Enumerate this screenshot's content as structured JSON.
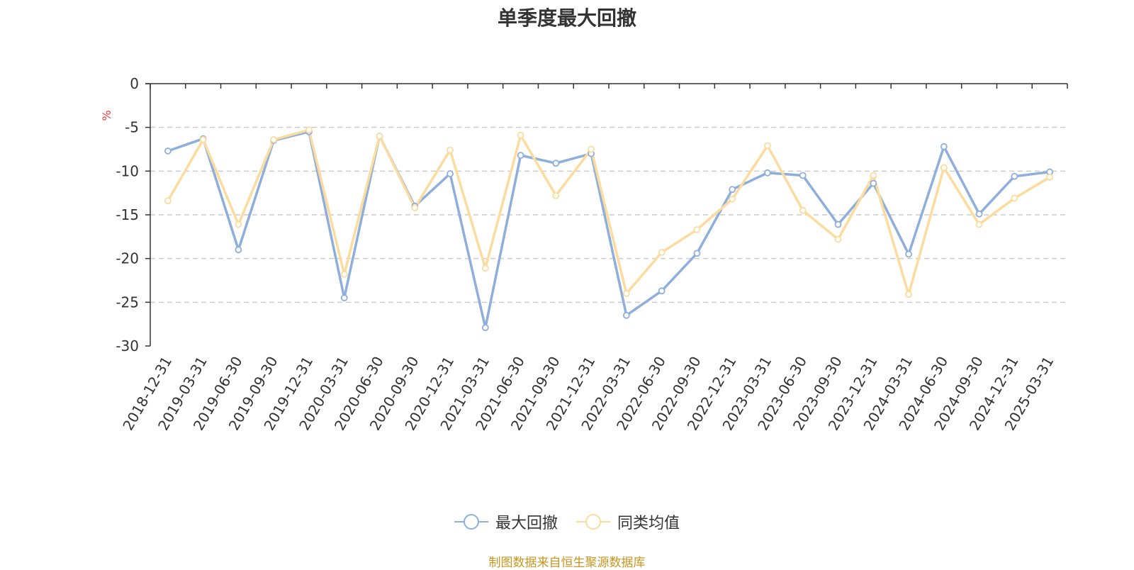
{
  "chart_data": {
    "type": "line",
    "title": "单季度最大回撤",
    "ylabel": "%",
    "xlabel": "",
    "ylim": [
      -30,
      0
    ],
    "yticks": [
      0,
      -5,
      -10,
      -15,
      -20,
      -25,
      -30
    ],
    "grid": true,
    "legend_position": "bottom",
    "categories": [
      "2018-12-31",
      "2019-03-31",
      "2019-06-30",
      "2019-09-30",
      "2019-12-31",
      "2020-03-31",
      "2020-06-30",
      "2020-09-30",
      "2020-12-31",
      "2021-03-31",
      "2021-06-30",
      "2021-09-30",
      "2021-12-31",
      "2022-03-31",
      "2022-06-30",
      "2022-09-30",
      "2022-12-31",
      "2023-03-31",
      "2023-06-30",
      "2023-09-30",
      "2023-12-31",
      "2024-03-31",
      "2024-06-30",
      "2024-09-30",
      "2024-12-31",
      "2025-03-31"
    ],
    "series": [
      {
        "name": "最大回撤",
        "color": "#8eaedb",
        "values": [
          -7.7,
          -6.3,
          -19.0,
          -6.5,
          -5.5,
          -24.5,
          -6.0,
          -14.0,
          -10.3,
          -27.9,
          -8.2,
          -9.1,
          -8.0,
          -26.5,
          -23.7,
          -19.4,
          -12.1,
          -10.2,
          -10.5,
          -16.1,
          -11.4,
          -19.5,
          -7.2,
          -14.9,
          -10.6,
          -10.1
        ]
      },
      {
        "name": "同类均值",
        "color": "#fbdc9e",
        "values": [
          -13.4,
          -6.4,
          -16.1,
          -6.4,
          -5.3,
          -21.8,
          -6.0,
          -14.2,
          -7.6,
          -21.1,
          -5.9,
          -12.8,
          -7.5,
          -24.0,
          -19.3,
          -16.7,
          -13.2,
          -7.1,
          -14.5,
          -17.8,
          -10.5,
          -24.1,
          -9.6,
          -16.1,
          -13.1,
          -10.7
        ]
      }
    ],
    "source_note": "制图数据来自恒生聚源数据库"
  }
}
